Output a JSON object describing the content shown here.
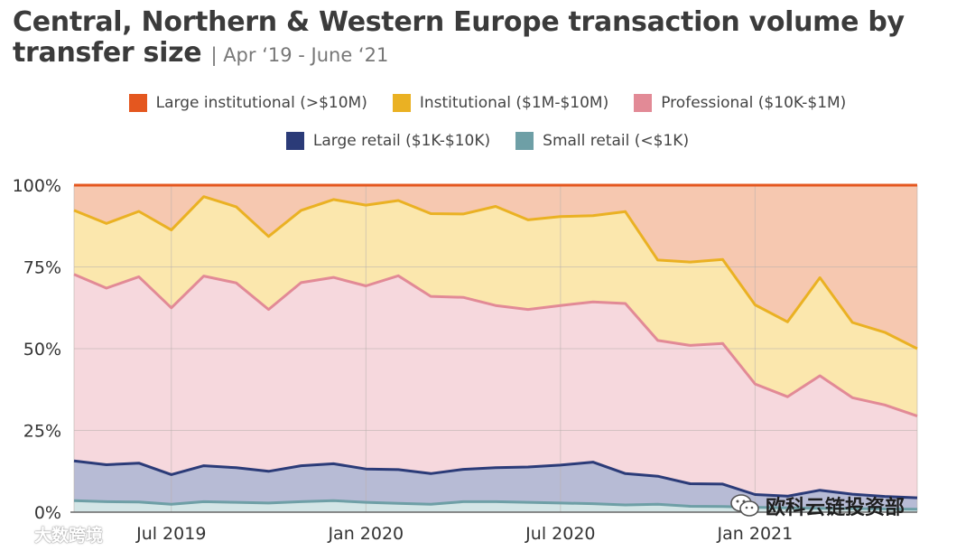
{
  "chart_data": {
    "type": "area",
    "stacked": true,
    "title": "Central, Northern & Western Europe transaction volume by transfer size",
    "subtitle": "| Apr ‘19 - June ‘21",
    "xlabel": "",
    "ylabel": "",
    "ylim": [
      0,
      100
    ],
    "y_ticks": [
      "0%",
      "25%",
      "50%",
      "75%",
      "100%"
    ],
    "x_ticks": [
      {
        "label": "Jul 2019",
        "index": 3
      },
      {
        "label": "Jan 2020",
        "index": 9
      },
      {
        "label": "Jul 2020",
        "index": 15
      },
      {
        "label": "Jan 2021",
        "index": 21
      }
    ],
    "x_count": 27,
    "series": [
      {
        "name": "Small retail (<$1K)",
        "color": "#6e9fa6",
        "fill": "#d3e5e6",
        "values": [
          3.5,
          3.2,
          3.1,
          2.4,
          3.2,
          3.0,
          2.8,
          3.2,
          3.5,
          3.0,
          2.7,
          2.4,
          3.2,
          3.2,
          3.0,
          2.8,
          2.6,
          2.2,
          2.4,
          1.8,
          1.7,
          1.5,
          1.3,
          1.2,
          1.1,
          1.0,
          0.9
        ]
      },
      {
        "name": "Large retail ($1K-$10K)",
        "color": "#2b3b78",
        "fill": "#b7bbd5",
        "values": [
          12.2,
          11.3,
          11.9,
          9.1,
          11.0,
          10.6,
          9.7,
          11.0,
          11.3,
          10.2,
          10.3,
          9.4,
          9.9,
          10.4,
          10.8,
          11.6,
          12.7,
          9.6,
          8.6,
          6.9,
          6.9,
          3.9,
          3.6,
          5.5,
          4.4,
          3.8,
          3.5
        ]
      },
      {
        "name": "Professional ($10K-$1M)",
        "color": "#e28a96",
        "fill": "#f6d8dd",
        "values": [
          57.0,
          54.0,
          57.0,
          51.0,
          58.0,
          56.5,
          49.5,
          56.0,
          57.0,
          56.0,
          59.3,
          54.2,
          52.6,
          49.6,
          48.2,
          48.8,
          49.0,
          52.0,
          41.5,
          42.3,
          43.0,
          33.8,
          30.4,
          35.0,
          29.5,
          28.0,
          25.0
        ]
      },
      {
        "name": "Institutional ($1M-$10M)",
        "color": "#eab123",
        "fill": "#fbe7ad",
        "values": [
          19.6,
          19.8,
          20.0,
          23.8,
          24.3,
          23.3,
          22.3,
          22.1,
          23.8,
          24.7,
          23.0,
          25.3,
          25.5,
          30.3,
          27.4,
          27.2,
          26.4,
          28.1,
          24.6,
          25.5,
          25.7,
          24.2,
          22.9,
          30.0,
          23.0,
          22.2,
          20.6
        ]
      },
      {
        "name": "Large institutional (>$10M)",
        "color": "#e4571f",
        "fill": "#f6c8b0",
        "values": [
          7.7,
          11.7,
          8.0,
          14.7,
          3.5,
          6.6,
          15.7,
          7.7,
          4.4,
          6.1,
          4.7,
          8.7,
          8.8,
          6.5,
          10.6,
          9.6,
          9.3,
          8.1,
          22.9,
          23.5,
          22.7,
          36.6,
          41.8,
          28.3,
          42.0,
          45.0,
          50.0
        ]
      }
    ],
    "legend": {
      "row1": [
        {
          "label": "Large institutional (>$10M)",
          "color": "#e4571f"
        },
        {
          "label": "Institutional ($1M-$10M)",
          "color": "#eab123"
        },
        {
          "label": "Professional ($10K-$1M)",
          "color": "#e28a96"
        }
      ],
      "row2": [
        {
          "label": "Large retail ($1K-$10K)",
          "color": "#2b3b78"
        },
        {
          "label": "Small retail (<$1K)",
          "color": "#6e9fa6"
        }
      ]
    },
    "grid": true
  },
  "watermark": {
    "text": "欧科云链投资部",
    "text2": "大数跨境"
  }
}
